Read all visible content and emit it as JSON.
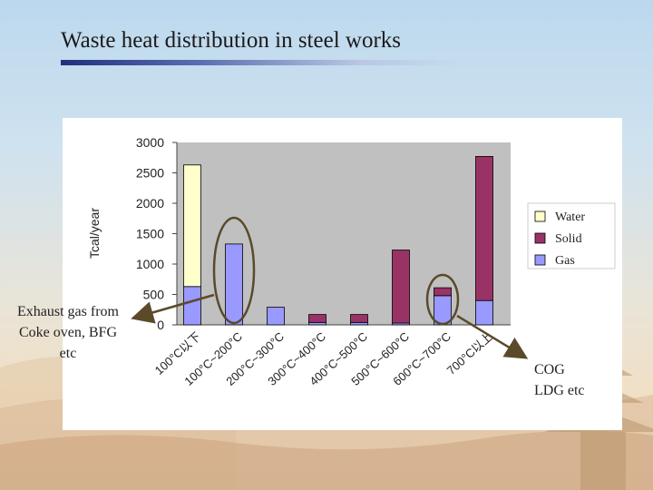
{
  "slide": {
    "title": "Waste heat distribution in steel works"
  },
  "annotations": {
    "left_lines": [
      "Exhaust gas from",
      "Coke oven, BFG",
      "etc"
    ],
    "right_lines": [
      "COG",
      "LDG etc"
    ]
  },
  "chart_data": {
    "type": "bar",
    "stacked": true,
    "title": "",
    "xlabel": "",
    "ylabel": "Tcal/year",
    "ylim": [
      0,
      3000
    ],
    "yticks": [
      0,
      500,
      1000,
      1500,
      2000,
      2500,
      3000
    ],
    "grid": false,
    "legend_position": "right",
    "categories": [
      "100°C以下",
      "100°C~200°C",
      "200°C~300°C",
      "300°C~400°C",
      "400°C~500°C",
      "500°C~600°C",
      "600°C~700°C",
      "700°C以上"
    ],
    "series": [
      {
        "name": "Gas",
        "color": "#9999ff",
        "values": [
          630,
          1330,
          290,
          40,
          40,
          30,
          480,
          400
        ]
      },
      {
        "name": "Solid",
        "color": "#993366",
        "values": [
          0,
          0,
          0,
          130,
          130,
          1200,
          130,
          2370
        ]
      },
      {
        "name": "Water",
        "color": "#ffffcc",
        "values": [
          2000,
          0,
          0,
          0,
          0,
          0,
          0,
          0
        ]
      }
    ],
    "legend": [
      "Water",
      "Solid",
      "Gas"
    ],
    "highlights": [
      {
        "category": "100°C~200°C",
        "note": "Exhaust gas from Coke oven, BFG etc"
      },
      {
        "category": "600°C~700°C",
        "note": "COG LDG etc"
      }
    ]
  },
  "colors": {
    "background_top": "#bcd8ee",
    "background_bottom": "#eed9bc",
    "title_bar": "#1f2f80",
    "plot_area": "#c0c0c0",
    "highlight_ellipse": "#5a4a2a"
  }
}
